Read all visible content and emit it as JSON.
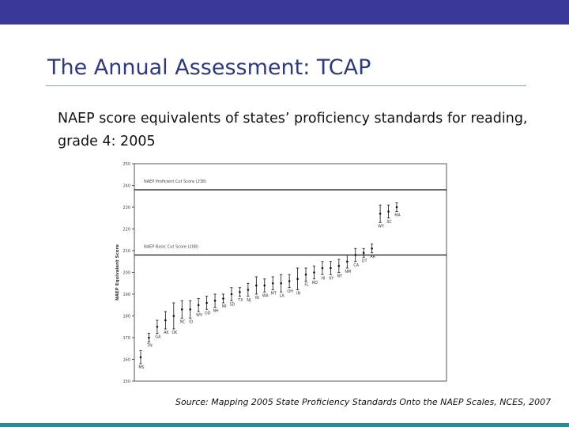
{
  "slide": {
    "title": "The Annual Assessment: TCAP",
    "subtitle": "NAEP score equivalents of states’ proficiency standards for reading, grade 4: 2005",
    "source_label": "Source:",
    "source_text": " Mapping 2005 State Proficiency Standards Onto the NAEP Scales, NCES, 2007"
  },
  "colors": {
    "topbar": "#39399a",
    "bottombar": "#2a8a8f",
    "title": "#2f3a7a"
  },
  "chart_data": {
    "type": "scatter",
    "ylabel": "NAEP Equivalent Score",
    "ylim": [
      150,
      250
    ],
    "yticks": [
      150,
      160,
      170,
      180,
      190,
      200,
      210,
      220,
      230,
      240,
      250
    ],
    "reference_lines": [
      {
        "label": "NAEP Proficient Cut Score (238)",
        "value": 238
      },
      {
        "label": "NAEP Basic Cut Score (208)",
        "value": 208
      }
    ],
    "points": [
      {
        "state": "MS",
        "value": 161,
        "err": 3
      },
      {
        "state": "TN",
        "value": 170,
        "err": 2
      },
      {
        "state": "GA",
        "value": 175,
        "err": 3
      },
      {
        "state": "AK",
        "value": 178,
        "err": 4
      },
      {
        "state": "OK",
        "value": 180,
        "err": 6
      },
      {
        "state": "NC",
        "value": 183,
        "err": 4
      },
      {
        "state": "ID",
        "value": 183,
        "err": 4
      },
      {
        "state": "WV",
        "value": 185,
        "err": 3
      },
      {
        "state": "OD",
        "value": 186,
        "err": 3
      },
      {
        "state": "NH",
        "value": 187,
        "err": 3
      },
      {
        "state": "MI",
        "value": 188,
        "err": 2
      },
      {
        "state": "SD",
        "value": 190,
        "err": 3
      },
      {
        "state": "TX",
        "value": 191,
        "err": 2
      },
      {
        "state": "NJ",
        "value": 192,
        "err": 3
      },
      {
        "state": "IN",
        "value": 194,
        "err": 4
      },
      {
        "state": "WA",
        "value": 194,
        "err": 3
      },
      {
        "state": "MT",
        "value": 195,
        "err": 3
      },
      {
        "state": "LA",
        "value": 195,
        "err": 4
      },
      {
        "state": "OH",
        "value": 196,
        "err": 3
      },
      {
        "state": "IN",
        "value": 197,
        "err": 5
      },
      {
        "state": "FL",
        "value": 199,
        "err": 3
      },
      {
        "state": "RD",
        "value": 200,
        "err": 3
      },
      {
        "state": "HI",
        "value": 202,
        "err": 3
      },
      {
        "state": "KY",
        "value": 202,
        "err": 3
      },
      {
        "state": "NY",
        "value": 203,
        "err": 3
      },
      {
        "state": "NM",
        "value": 205,
        "err": 3
      },
      {
        "state": "CA",
        "value": 208,
        "err": 3
      },
      {
        "state": "DT",
        "value": 209,
        "err": 2
      },
      {
        "state": "AR",
        "value": 211,
        "err": 2
      },
      {
        "state": "WY",
        "value": 227,
        "err": 4
      },
      {
        "state": "SC",
        "value": 228,
        "err": 3
      },
      {
        "state": "MA",
        "value": 230,
        "err": 2
      }
    ]
  }
}
